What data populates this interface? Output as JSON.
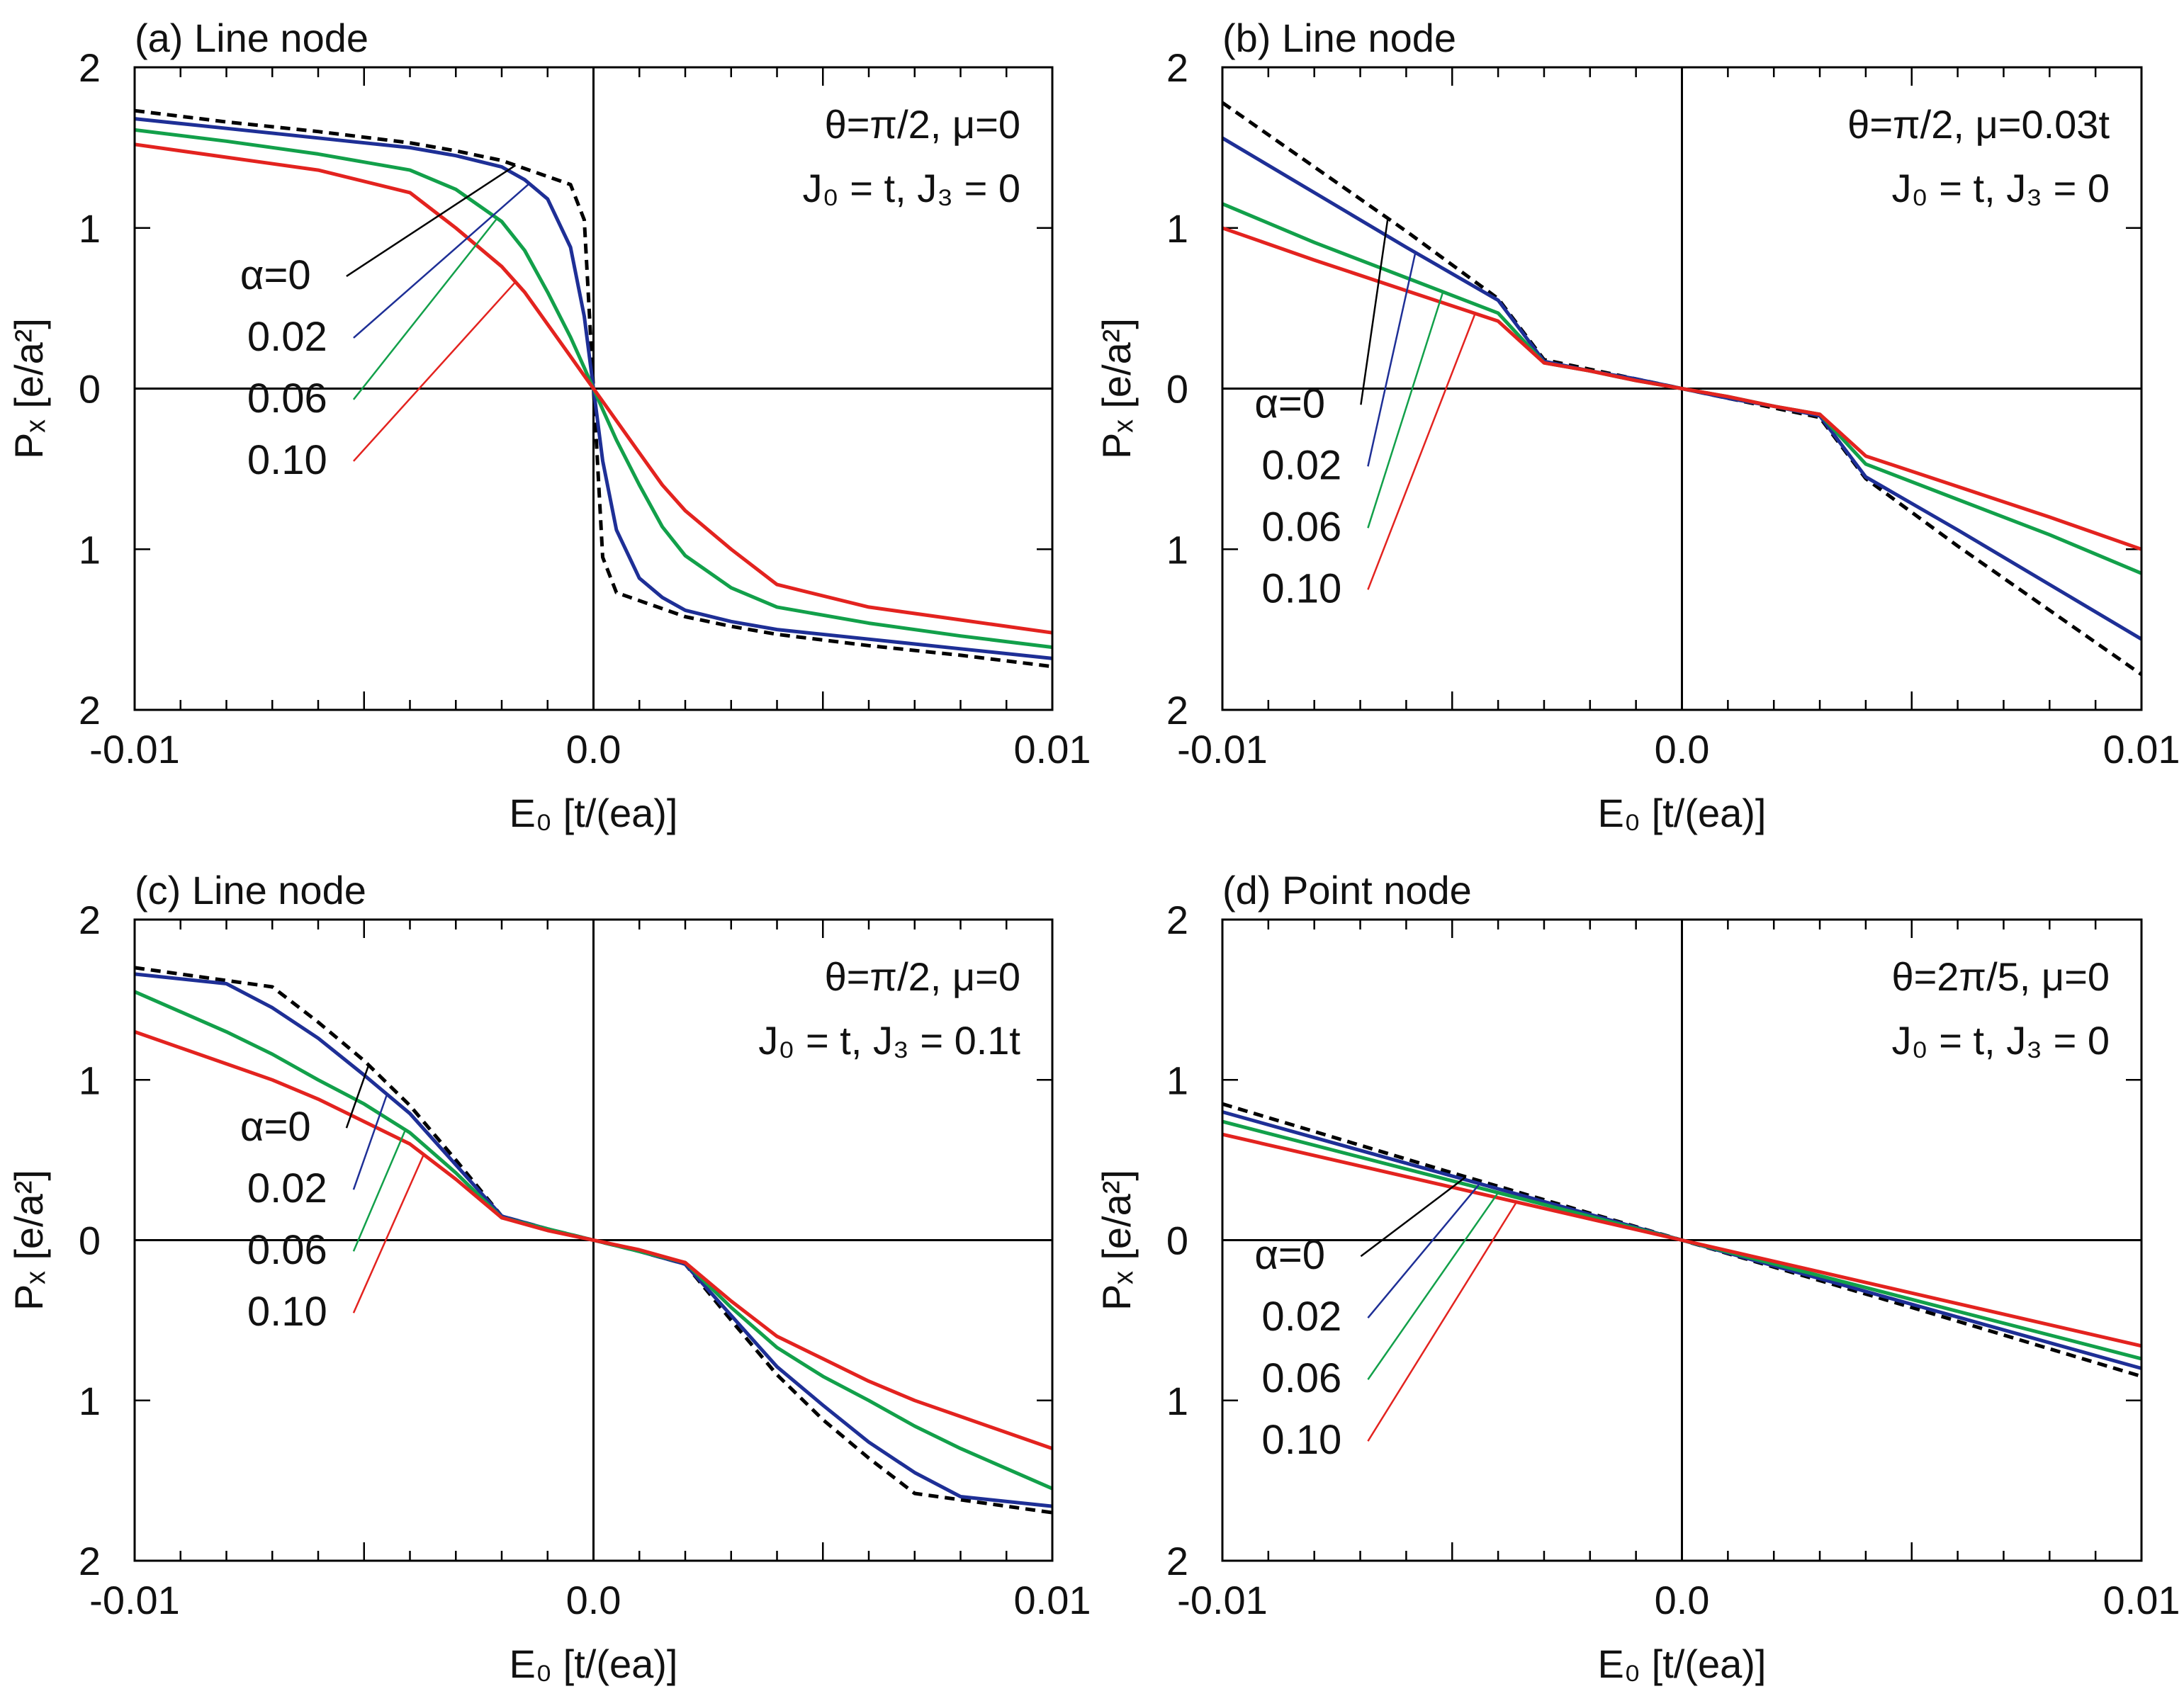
{
  "figure": {
    "colors": {
      "alpha_0": "#000000",
      "alpha_0.02": "#1e2f96",
      "alpha_0.06": "#12a04a",
      "alpha_0.10": "#e3231f"
    }
  },
  "chart_data": [
    {
      "type": "line",
      "title": "(a) Line node",
      "xlabel": "E₀ [t/(ea)]",
      "ylabel": "Pₓ [e/a²]",
      "xlim": [
        -0.01,
        0.01
      ],
      "ylim": [
        -2,
        2
      ],
      "xticks": [
        -0.01,
        0.0,
        0.01
      ],
      "xtick_labels": [
        "-0.01",
        "0.0",
        "0.01"
      ],
      "yticks": [
        2,
        1,
        0,
        -1,
        -2
      ],
      "ytick_labels": [
        "2",
        "1",
        "0",
        "1",
        "2"
      ],
      "annotation": [
        "θ=π/2, μ=0",
        "J₀ = t, J₃ = 0"
      ],
      "legend_labels": [
        "α=0",
        "0.02",
        "0.06",
        "0.10"
      ],
      "x": [
        -0.01,
        -0.008,
        -0.006,
        -0.004,
        -0.003,
        -0.002,
        -0.0015,
        -0.001,
        -0.0005,
        -0.0002,
        0.0,
        0.0002,
        0.0005,
        0.001,
        0.0015,
        0.002,
        0.003,
        0.004,
        0.006,
        0.008,
        0.01
      ],
      "series": [
        {
          "name": "α=0",
          "style": "dashed",
          "values": [
            1.73,
            1.66,
            1.6,
            1.53,
            1.48,
            1.42,
            1.37,
            1.32,
            1.27,
            1.05,
            0.0,
            -1.05,
            -1.27,
            -1.32,
            -1.37,
            -1.42,
            -1.48,
            -1.53,
            -1.6,
            -1.66,
            -1.73
          ]
        },
        {
          "name": "0.02",
          "style": "solid",
          "values": [
            1.68,
            1.62,
            1.56,
            1.5,
            1.45,
            1.38,
            1.3,
            1.18,
            0.88,
            0.45,
            0.0,
            -0.45,
            -0.88,
            -1.18,
            -1.3,
            -1.38,
            -1.45,
            -1.5,
            -1.56,
            -1.62,
            -1.68
          ]
        },
        {
          "name": "0.06",
          "style": "solid",
          "values": [
            1.61,
            1.54,
            1.46,
            1.36,
            1.24,
            1.04,
            0.86,
            0.6,
            0.32,
            0.13,
            0.0,
            -0.13,
            -0.32,
            -0.6,
            -0.86,
            -1.04,
            -1.24,
            -1.36,
            -1.46,
            -1.54,
            -1.61
          ]
        },
        {
          "name": "0.10",
          "style": "solid",
          "values": [
            1.52,
            1.44,
            1.36,
            1.22,
            1.0,
            0.76,
            0.6,
            0.4,
            0.2,
            0.08,
            0.0,
            -0.08,
            -0.2,
            -0.4,
            -0.6,
            -0.76,
            -1.0,
            -1.22,
            -1.36,
            -1.44,
            -1.52
          ]
        }
      ]
    },
    {
      "type": "line",
      "title": "(b) Line node",
      "xlabel": "E₀ [t/(ea)]",
      "ylabel": "Pₓ [e/a²]",
      "xlim": [
        -0.01,
        0.01
      ],
      "ylim": [
        -2,
        2
      ],
      "xticks": [
        -0.01,
        0.0,
        0.01
      ],
      "xtick_labels": [
        "-0.01",
        "0.0",
        "0.01"
      ],
      "yticks": [
        2,
        1,
        0,
        -1,
        -2
      ],
      "ytick_labels": [
        "2",
        "1",
        "0",
        "1",
        "2"
      ],
      "annotation": [
        "θ=π/2, μ=0.03t",
        "J₀ = t, J₃ = 0"
      ],
      "legend_labels": [
        "α=0",
        "0.02",
        "0.06",
        "0.10"
      ],
      "x": [
        -0.01,
        -0.008,
        -0.006,
        -0.004,
        -0.003,
        -0.002,
        -0.001,
        0.0,
        0.001,
        0.002,
        0.003,
        0.004,
        0.006,
        0.008,
        0.01
      ],
      "series": [
        {
          "name": "α=0",
          "style": "dashed",
          "values": [
            1.78,
            1.38,
            0.98,
            0.56,
            0.18,
            0.12,
            0.06,
            0.0,
            -0.06,
            -0.12,
            -0.18,
            -0.56,
            -0.98,
            -1.38,
            -1.78
          ]
        },
        {
          "name": "0.02",
          "style": "solid",
          "values": [
            1.56,
            1.22,
            0.88,
            0.55,
            0.17,
            0.11,
            0.06,
            0.0,
            -0.06,
            -0.11,
            -0.17,
            -0.55,
            -0.88,
            -1.22,
            -1.56
          ]
        },
        {
          "name": "0.06",
          "style": "solid",
          "values": [
            1.15,
            0.91,
            0.69,
            0.47,
            0.16,
            0.11,
            0.05,
            0.0,
            -0.05,
            -0.11,
            -0.16,
            -0.47,
            -0.69,
            -0.91,
            -1.15
          ]
        },
        {
          "name": "0.10",
          "style": "solid",
          "values": [
            1.0,
            0.8,
            0.61,
            0.42,
            0.16,
            0.11,
            0.05,
            0.0,
            -0.05,
            -0.11,
            -0.16,
            -0.42,
            -0.61,
            -0.8,
            -1.0
          ]
        }
      ]
    },
    {
      "type": "line",
      "title": "(c) Line node",
      "xlabel": "E₀ [t/(ea)]",
      "ylabel": "Pₓ [e/a²]",
      "xlim": [
        -0.01,
        0.01
      ],
      "ylim": [
        -2,
        2
      ],
      "xticks": [
        -0.01,
        0.0,
        0.01
      ],
      "xtick_labels": [
        "-0.01",
        "0.0",
        "0.01"
      ],
      "yticks": [
        2,
        1,
        0,
        -1,
        -2
      ],
      "ytick_labels": [
        "2",
        "1",
        "0",
        "1",
        "2"
      ],
      "annotation": [
        "θ=π/2, μ=0",
        "J₀ = t, J₃ = 0.1t"
      ],
      "legend_labels": [
        "α=0",
        "0.02",
        "0.06",
        "0.10"
      ],
      "x": [
        -0.01,
        -0.008,
        -0.007,
        -0.006,
        -0.005,
        -0.004,
        -0.003,
        -0.002,
        -0.001,
        0.0,
        0.001,
        0.002,
        0.003,
        0.004,
        0.005,
        0.006,
        0.007,
        0.008,
        0.01
      ],
      "series": [
        {
          "name": "α=0",
          "style": "dashed",
          "values": [
            1.7,
            1.62,
            1.58,
            1.36,
            1.12,
            0.84,
            0.5,
            0.15,
            0.07,
            0.0,
            -0.07,
            -0.15,
            -0.5,
            -0.84,
            -1.12,
            -1.36,
            -1.58,
            -1.62,
            -1.7
          ]
        },
        {
          "name": "0.02",
          "style": "solid",
          "values": [
            1.66,
            1.6,
            1.45,
            1.26,
            1.03,
            0.79,
            0.47,
            0.15,
            0.07,
            0.0,
            -0.07,
            -0.15,
            -0.47,
            -0.79,
            -1.03,
            -1.26,
            -1.45,
            -1.6,
            -1.66
          ]
        },
        {
          "name": "0.06",
          "style": "solid",
          "values": [
            1.55,
            1.3,
            1.16,
            1.0,
            0.85,
            0.67,
            0.42,
            0.14,
            0.07,
            0.0,
            -0.07,
            -0.14,
            -0.42,
            -0.67,
            -0.85,
            -1.0,
            -1.16,
            -1.3,
            -1.55
          ]
        },
        {
          "name": "0.10",
          "style": "solid",
          "values": [
            1.3,
            1.1,
            1.0,
            0.88,
            0.74,
            0.6,
            0.38,
            0.14,
            0.06,
            0.0,
            -0.06,
            -0.14,
            -0.38,
            -0.6,
            -0.74,
            -0.88,
            -1.0,
            -1.1,
            -1.3
          ]
        }
      ]
    },
    {
      "type": "line",
      "title": "(d) Point node",
      "xlabel": "E₀ [t/(ea)]",
      "ylabel": "Pₓ [e/a²]",
      "xlim": [
        -0.01,
        0.01
      ],
      "ylim": [
        -2,
        2
      ],
      "xticks": [
        -0.01,
        0.0,
        0.01
      ],
      "xtick_labels": [
        "-0.01",
        "0.0",
        "0.01"
      ],
      "yticks": [
        2,
        1,
        0,
        -1,
        -2
      ],
      "ytick_labels": [
        "2",
        "1",
        "0",
        "1",
        "2"
      ],
      "annotation": [
        "θ=2π/5, μ=0",
        "J₀ = t, J₃ = 0"
      ],
      "legend_labels": [
        "α=0",
        "0.02",
        "0.06",
        "0.10"
      ],
      "x": [
        -0.01,
        -0.005,
        0.0,
        0.005,
        0.01
      ],
      "series": [
        {
          "name": "α=0",
          "style": "dashed",
          "values": [
            0.85,
            0.42,
            0.0,
            -0.42,
            -0.85
          ]
        },
        {
          "name": "0.02",
          "style": "solid",
          "values": [
            0.8,
            0.4,
            0.0,
            -0.4,
            -0.8
          ]
        },
        {
          "name": "0.06",
          "style": "solid",
          "values": [
            0.74,
            0.37,
            0.0,
            -0.37,
            -0.74
          ]
        },
        {
          "name": "0.10",
          "style": "solid",
          "values": [
            0.66,
            0.33,
            0.0,
            -0.33,
            -0.66
          ]
        }
      ]
    }
  ]
}
